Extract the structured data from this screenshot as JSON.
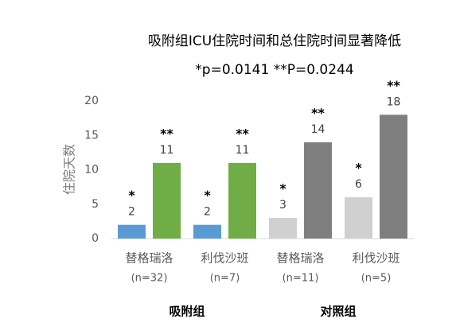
{
  "chart_data": {
    "type": "bar",
    "title": "吸附组ICU住院时间和总住院时间显著降低",
    "subtitle": "*p=0.0141 **P=0.0244",
    "y_label": "住院天数",
    "categories": [
      "替格瑞洛",
      "利伐沙班",
      "替格瑞洛",
      "利伐沙班"
    ],
    "category_sublabels": [
      "(n=32)",
      "(n=7)",
      "(n=11)",
      "(n=5)"
    ],
    "groups": [
      "吸附组",
      "对照组"
    ],
    "series": [
      {
        "values": [
          2,
          2,
          3,
          6
        ],
        "colors": [
          "#5b9bd5",
          "#5b9bd5",
          "#d0d0d0",
          "#d0d0d0"
        ],
        "markers": [
          "*",
          "*",
          "*",
          "*"
        ]
      },
      {
        "values": [
          11,
          11,
          14,
          18
        ],
        "colors": [
          "#70ad47",
          "#70ad47",
          "#7f7f7f",
          "#7f7f7f"
        ],
        "markers": [
          "**",
          "**",
          "**",
          "**"
        ]
      }
    ],
    "ylim": [
      0,
      20
    ],
    "yticks": [
      0,
      5,
      10,
      15,
      20
    ],
    "grid": false
  }
}
